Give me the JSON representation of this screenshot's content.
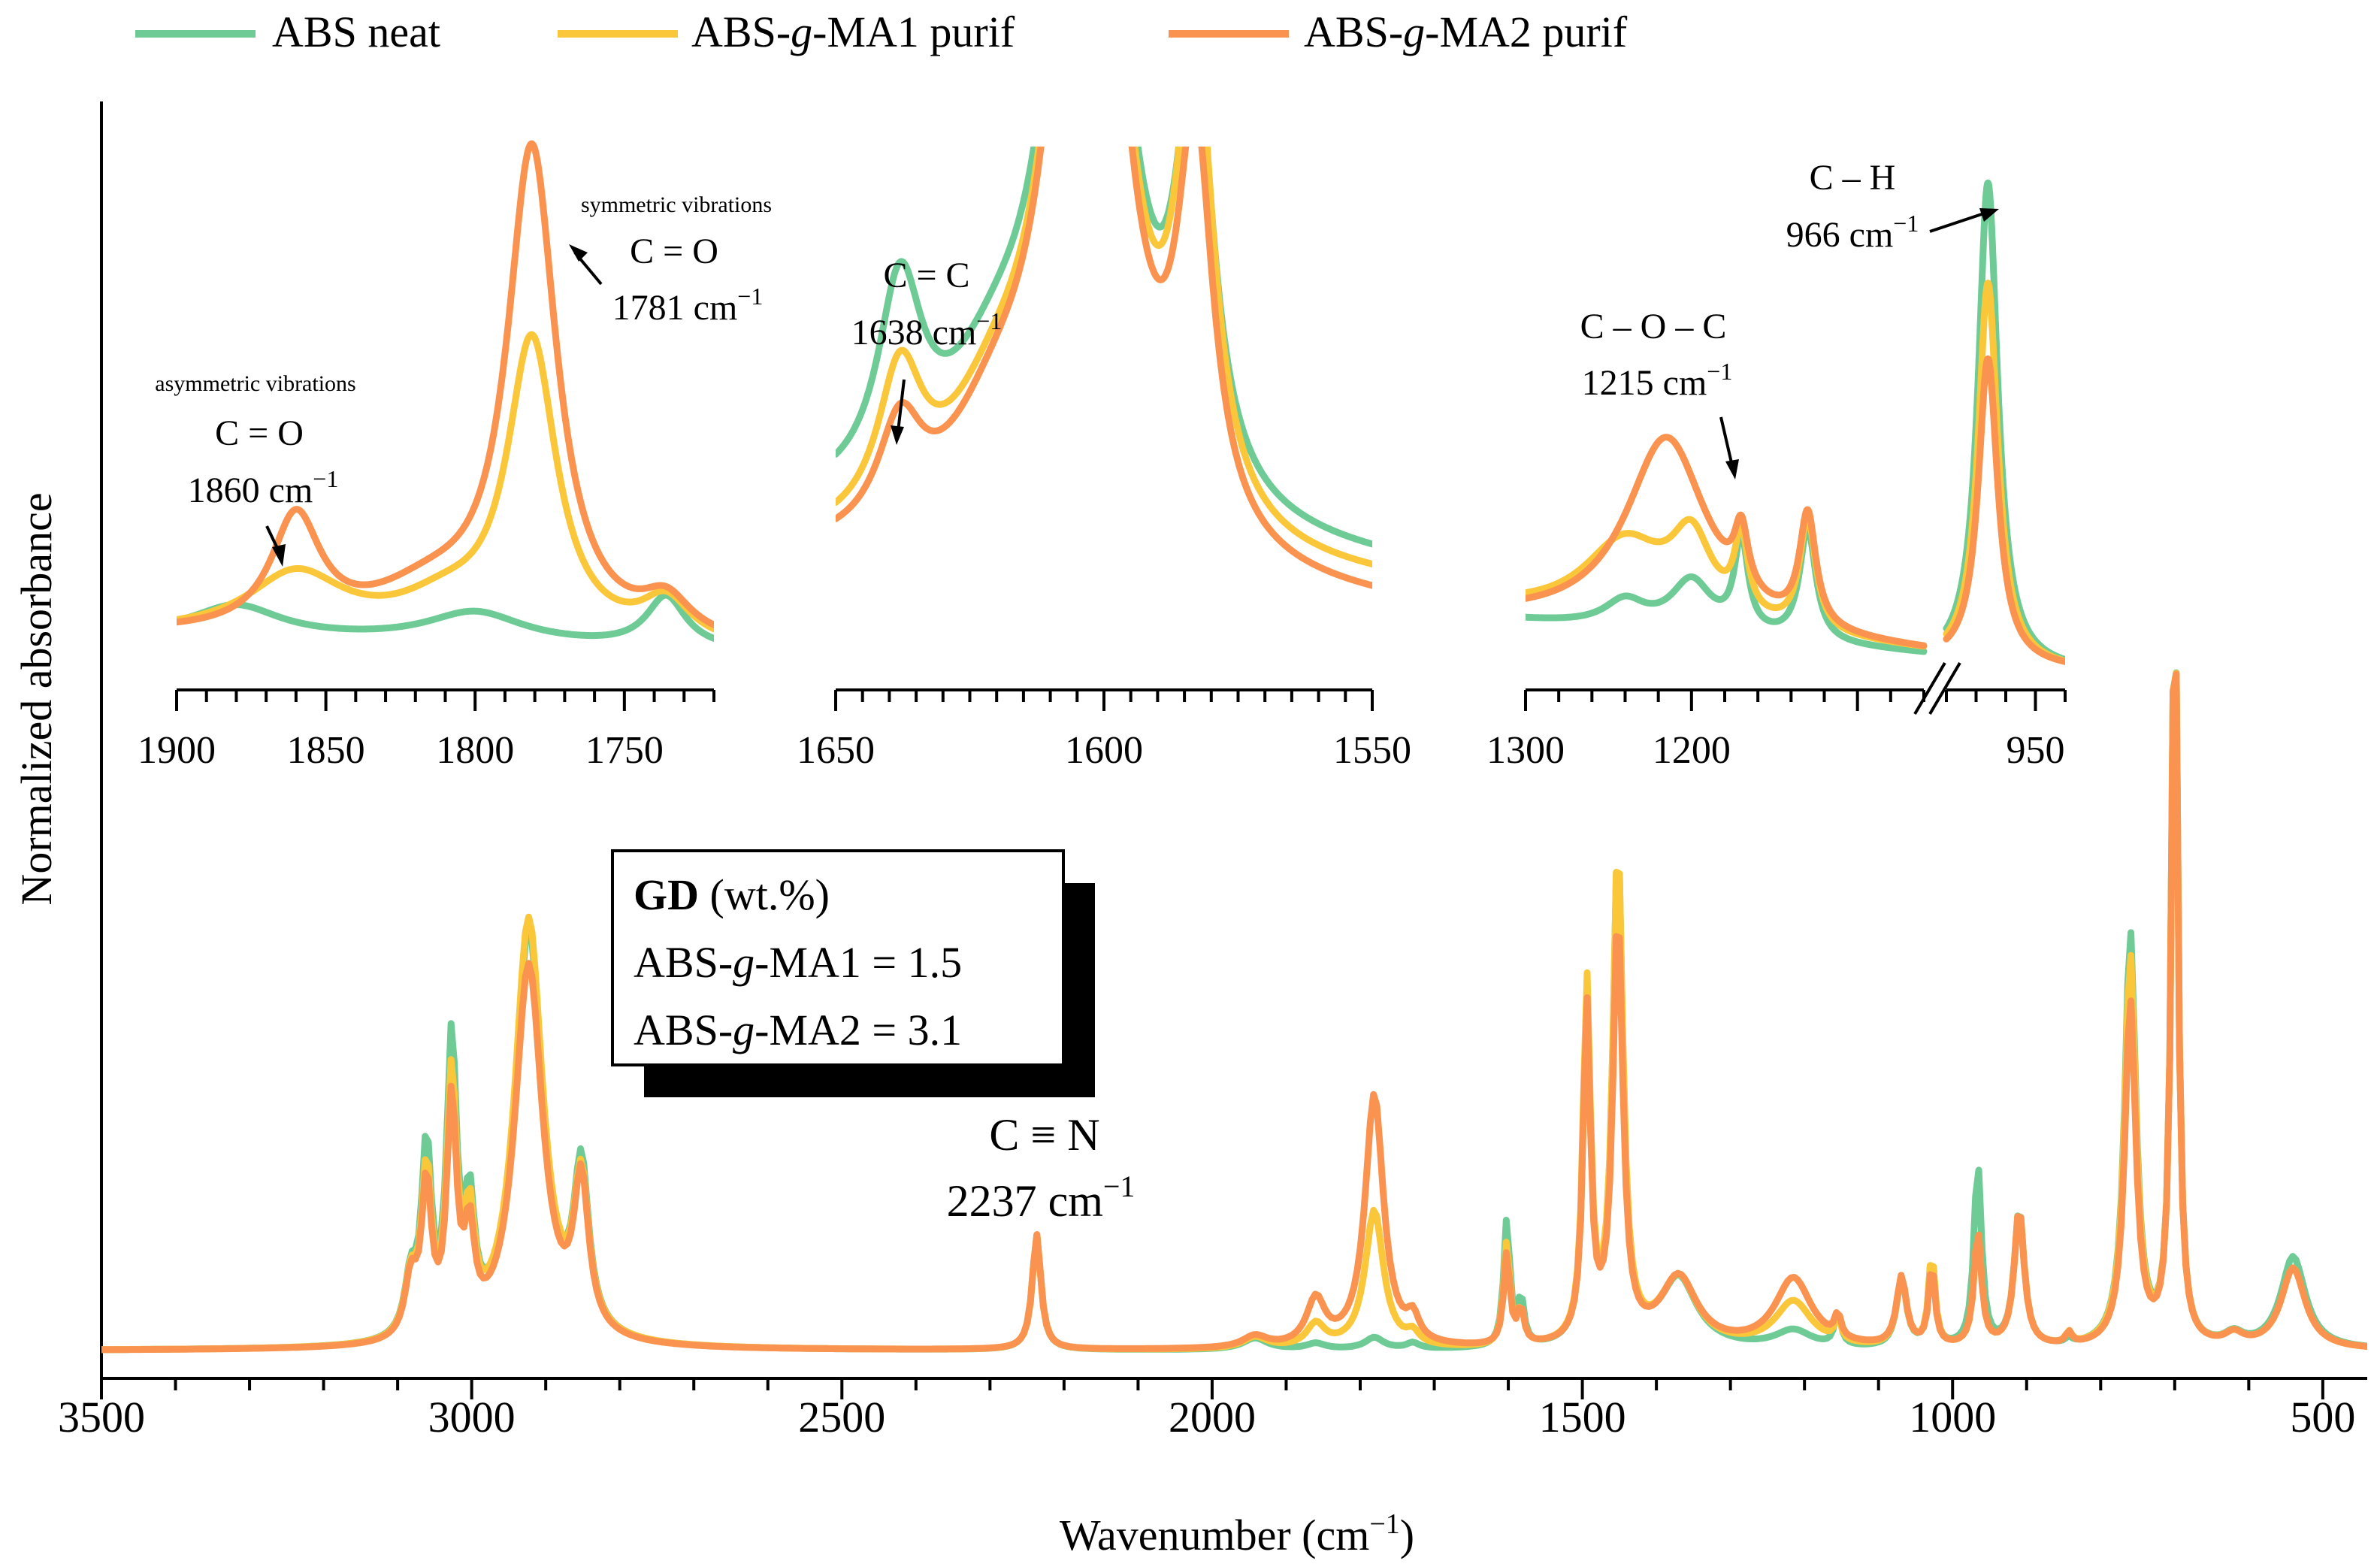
{
  "colors": {
    "abs_neat": "#6ecb96",
    "mal1": "#fbc73a",
    "mal2": "#f9934f"
  },
  "chart_data": [
    {
      "id": "main",
      "type": "line",
      "xlabel": "Wavenumber (cm",
      "xlabel_sup": "−1",
      "xlabel_close": ")",
      "ylabel": "Normalized absorbance",
      "xlim": [
        3500,
        440
      ],
      "ylim": [
        0,
        1.1
      ],
      "xticks": [
        3500,
        3000,
        2500,
        2000,
        1500,
        1000,
        500
      ],
      "legend": [
        {
          "name": "ABS neat",
          "color": "#6ecb96"
        },
        {
          "name_parts": [
            "ABS-",
            "g",
            "-MA1 purif"
          ],
          "color": "#fbc73a"
        },
        {
          "name_parts": [
            "ABS-",
            "g",
            "-MA2 purif"
          ],
          "color": "#f9934f"
        }
      ],
      "baseline": 0.015,
      "series_peaks": [
        {
          "name": "ABS neat",
          "peaks": [
            [
              3082,
              0.05,
              10
            ],
            [
              3061,
              0.16,
              8
            ],
            [
              3027,
              0.25,
              8
            ],
            [
              3003,
              0.1,
              8
            ],
            [
              2923,
              0.36,
              23
            ],
            [
              2852,
              0.14,
              12
            ],
            [
              2237,
              0.1,
              7
            ],
            [
              1942,
              0.01,
              20
            ],
            [
              1860,
              0.005,
              15
            ],
            [
              1781,
              0.01,
              15
            ],
            [
              1729,
              0.005,
              10
            ],
            [
              1602,
              0.11,
              5
            ],
            [
              1583,
              0.04,
              5
            ],
            [
              1494,
              0.29,
              6
            ],
            [
              1452,
              0.43,
              8
            ],
            [
              1370,
              0.06,
              30
            ],
            [
              1215,
              0.015,
              30
            ],
            [
              1155,
              0.03,
              5
            ],
            [
              1069,
              0.06,
              8
            ],
            [
              1028,
              0.08,
              5
            ],
            [
              966,
              0.16,
              6
            ],
            [
              910,
              0.12,
              8
            ],
            [
              843,
              0.005,
              5
            ],
            [
              760,
              0.36,
              9
            ],
            [
              700,
              0.68,
              5
            ],
            [
              620,
              0.01,
              15
            ],
            [
              540,
              0.08,
              20
            ]
          ]
        },
        {
          "name": "ABS-g-MA1 purif",
          "peaks": [
            [
              3082,
              0.05,
              10
            ],
            [
              3061,
              0.14,
              8
            ],
            [
              3027,
              0.22,
              8
            ],
            [
              3003,
              0.09,
              8
            ],
            [
              2923,
              0.37,
              23
            ],
            [
              2852,
              0.13,
              12
            ],
            [
              2237,
              0.1,
              7
            ],
            [
              1942,
              0.01,
              20
            ],
            [
              1860,
              0.02,
              15
            ],
            [
              1781,
              0.12,
              15
            ],
            [
              1729,
              0.01,
              10
            ],
            [
              1602,
              0.09,
              5
            ],
            [
              1583,
              0.03,
              5
            ],
            [
              1494,
              0.31,
              6
            ],
            [
              1452,
              0.43,
              8
            ],
            [
              1370,
              0.06,
              30
            ],
            [
              1215,
              0.04,
              30
            ],
            [
              1155,
              0.02,
              5
            ],
            [
              1069,
              0.06,
              8
            ],
            [
              1028,
              0.08,
              5
            ],
            [
              966,
              0.1,
              6
            ],
            [
              910,
              0.12,
              8
            ],
            [
              843,
              0.01,
              5
            ],
            [
              760,
              0.34,
              9
            ],
            [
              700,
              0.68,
              5
            ],
            [
              620,
              0.01,
              15
            ],
            [
              540,
              0.07,
              20
            ]
          ]
        },
        {
          "name": "ABS-g-MA2 purif",
          "peaks": [
            [
              3082,
              0.05,
              10
            ],
            [
              3061,
              0.13,
              8
            ],
            [
              3027,
              0.2,
              8
            ],
            [
              3003,
              0.08,
              8
            ],
            [
              2923,
              0.33,
              23
            ],
            [
              2852,
              0.13,
              12
            ],
            [
              2237,
              0.1,
              7
            ],
            [
              1942,
              0.01,
              20
            ],
            [
              1860,
              0.04,
              15
            ],
            [
              1781,
              0.22,
              15
            ],
            [
              1729,
              0.02,
              10
            ],
            [
              1602,
              0.08,
              5
            ],
            [
              1583,
              0.03,
              5
            ],
            [
              1494,
              0.29,
              6
            ],
            [
              1452,
              0.37,
              8
            ],
            [
              1370,
              0.06,
              30
            ],
            [
              1215,
              0.06,
              30
            ],
            [
              1155,
              0.02,
              5
            ],
            [
              1069,
              0.06,
              8
            ],
            [
              1028,
              0.07,
              5
            ],
            [
              966,
              0.1,
              6
            ],
            [
              910,
              0.12,
              8
            ],
            [
              843,
              0.01,
              5
            ],
            [
              760,
              0.3,
              9
            ],
            [
              700,
              0.68,
              5
            ],
            [
              620,
              0.01,
              15
            ],
            [
              540,
              0.07,
              20
            ]
          ]
        }
      ]
    },
    {
      "id": "inset1",
      "type": "line",
      "xlim": [
        1900,
        1720
      ],
      "ylim": [
        0,
        1
      ],
      "xticks": [
        1900,
        1850,
        1800,
        1750
      ],
      "minor_step": 10,
      "series_peaks": [
        {
          "name": "ABS neat",
          "base": [
            0.07,
            0.04
          ],
          "peaks": [
            [
              1880,
              0.06,
              18
            ],
            [
              1800,
              0.06,
              20
            ],
            [
              1736,
              0.1,
              8
            ]
          ]
        },
        {
          "name": "ABS-g-MA1 purif",
          "base": [
            0.07,
            0.04
          ],
          "peaks": [
            [
              1860,
              0.12,
              20
            ],
            [
              1781,
              0.58,
              10
            ],
            [
              1736,
              0.08,
              10
            ],
            [
              1810,
              0.06,
              20
            ]
          ]
        },
        {
          "name": "ABS-g-MA2 purif",
          "base": [
            0.07,
            0.04
          ],
          "peaks": [
            [
              1860,
              0.22,
              10
            ],
            [
              1781,
              0.95,
              10
            ],
            [
              1736,
              0.07,
              10
            ],
            [
              1815,
              0.08,
              25
            ]
          ]
        }
      ]
    },
    {
      "id": "inset2",
      "type": "line",
      "xlim": [
        1650,
        1550
      ],
      "ylim": [
        0,
        1
      ],
      "xticks": [
        1650,
        1600,
        1550
      ],
      "minor_step": 5,
      "series_peaks": [
        {
          "name": "ABS neat",
          "base": [
            0.3,
            0.2
          ],
          "peaks": [
            [
              1638,
              0.38,
              5
            ],
            [
              1603,
              1.8,
              7
            ],
            [
              1583,
              0.8,
              4
            ],
            [
              1620,
              0.2,
              12
            ]
          ]
        },
        {
          "name": "ABS-g-MA1 purif",
          "base": [
            0.22,
            0.16
          ],
          "peaks": [
            [
              1638,
              0.28,
              5
            ],
            [
              1603,
              1.8,
              7
            ],
            [
              1583,
              0.88,
              4
            ],
            [
              1620,
              0.2,
              12
            ]
          ]
        },
        {
          "name": "ABS-g-MA2 purif",
          "base": [
            0.2,
            0.12
          ],
          "peaks": [
            [
              1638,
              0.2,
              5
            ],
            [
              1603,
              1.8,
              7
            ],
            [
              1583,
              0.75,
              4
            ],
            [
              1620,
              0.2,
              12
            ]
          ]
        }
      ]
    },
    {
      "id": "inset3",
      "type": "line",
      "xlim": [
        1300,
        940
      ],
      "ylim": [
        0,
        1
      ],
      "xticks": [
        1300,
        1200,
        950
      ],
      "break_at": 1060,
      "series_peaks": [
        {
          "name": "ABS neat",
          "base": [
            0.1,
            0.0
          ],
          "peaks": [
            [
              1240,
              0.05,
              15
            ],
            [
              1200,
              0.1,
              15
            ],
            [
              1170,
              0.18,
              5
            ],
            [
              1130,
              0.22,
              6
            ],
            [
              966,
              0.95,
              4
            ]
          ]
        },
        {
          "name": "ABS-g-MA1 purif",
          "base": [
            0.12,
            0.0
          ],
          "peaks": [
            [
              1240,
              0.15,
              30
            ],
            [
              1200,
              0.15,
              15
            ],
            [
              1170,
              0.15,
              5
            ],
            [
              1130,
              0.22,
              6
            ],
            [
              966,
              0.75,
              4
            ]
          ]
        },
        {
          "name": "ABS-g-MA2 purif",
          "base": [
            0.1,
            0.0
          ],
          "peaks": [
            [
              1215,
              0.38,
              30
            ],
            [
              1170,
              0.12,
              5
            ],
            [
              1130,
              0.22,
              6
            ],
            [
              966,
              0.6,
              4
            ]
          ]
        }
      ]
    }
  ],
  "annotations": {
    "cn_formula": "C ≡ N",
    "cn_value": "2237 cm",
    "sup": "−1",
    "asym_title": "asymmetric vibrations",
    "asym_formula": "C = O",
    "asym_value": "1860 cm",
    "sym_title": "symmetric vibrations",
    "sym_formula": "C = O",
    "sym_value": "1781 cm",
    "cc_formula": "C = C",
    "cc_value": "1638 cm",
    "coc_formula": "C – O – C",
    "coc_value": "1215 cm",
    "ch_formula": "C – H",
    "ch_value": "966 cm"
  },
  "gd_box": {
    "title_bold": "GD",
    "title_rest": " (wt.%)",
    "line1_parts": [
      "ABS-",
      "g",
      "-MA1 = 1.5"
    ],
    "line2_parts": [
      "ABS-",
      "g",
      "-MA2 = 3.1"
    ]
  }
}
